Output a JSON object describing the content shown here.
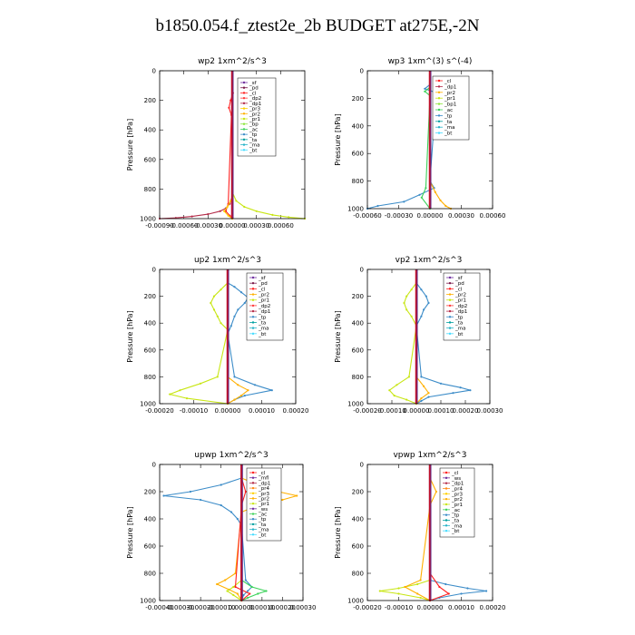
{
  "figure_title": "b1850.054.f_ztest2e_2b  BUDGET at275E,-2N",
  "colors": {
    "sf": "#7030a0",
    "pd": "#7a1a4a",
    "cl": "#ff2020",
    "dp2": "#ff3b3b",
    "dp1": "#b42d4a",
    "pr3": "#ffd000",
    "pr2": "#ffb000",
    "pr1": "#c8e614",
    "bp": "#8ce63c",
    "bp1": "#8ce63c",
    "ac": "#3cd25a",
    "tp": "#3c8cc8",
    "ta": "#00a0a0",
    "ma": "#28b4c8",
    "bt": "#46dcff",
    "mfl": "#7030a0",
    "pr4": "#ff8c1a",
    "ws": "#7030a0",
    "buoy": "#3cd25a"
  },
  "chart_data": [
    {
      "type": "line",
      "title": "wp2   1xm^2/s^3",
      "ylabel": "Pressure [hPa]",
      "ylim": [
        1000,
        0
      ],
      "xlim": [
        -0.0009,
        0.0009
      ],
      "xticks": [
        -0.0009,
        -0.0006,
        -0.0003,
        0.0,
        0.0003,
        0.0006
      ],
      "xtick_labels": [
        "-0.00090",
        "-0.00060",
        "-0.00030",
        "0.00000",
        "0.00030",
        "0.00060"
      ],
      "yticks": [
        0,
        200,
        400,
        600,
        800,
        1000
      ],
      "legend": [
        "_sf",
        "_pd",
        "_cl",
        "_dp2",
        "_dp1",
        "_pr3",
        "_pr2",
        "_pr1",
        "_bp",
        "_ac",
        "_tp",
        "_ta",
        "_ma",
        "_bt"
      ],
      "series": [
        {
          "name": "_dp1",
          "color_key": "dp1",
          "p": [
            850,
            900,
            930,
            950,
            970,
            985,
            995,
            1000
          ],
          "x": [
            0,
            -3e-05,
            -8e-05,
            -0.00015,
            -0.0003,
            -0.0005,
            -0.0007,
            -0.0009
          ]
        },
        {
          "name": "_pr1",
          "color_key": "pr1",
          "p": [
            820,
            880,
            920,
            950,
            975,
            990,
            1000
          ],
          "x": [
            0,
            5e-05,
            0.00015,
            0.0003,
            0.0005,
            0.0007,
            0.0009
          ]
        },
        {
          "name": "_cl",
          "color_key": "cl",
          "p": [
            150,
            200,
            250,
            300,
            900,
            950,
            980,
            1000
          ],
          "x": [
            1e-05,
            -2e-05,
            -4e-05,
            -1e-05,
            -5e-05,
            -8e-05,
            -3e-05,
            0
          ]
        },
        {
          "name": "_pr3",
          "color_key": "pr3",
          "p": [
            880,
            920,
            950,
            980,
            1000
          ],
          "x": [
            -2e-05,
            -6e-05,
            -0.0001,
            -5e-05,
            0
          ]
        },
        {
          "name": "_sf",
          "color_key": "sf",
          "p": [
            0,
            500,
            1000
          ],
          "x": [
            0,
            0,
            0
          ]
        }
      ]
    },
    {
      "type": "line",
      "title": "wp3   1xm^(3) s^(-4)",
      "ylabel": "Pressure [hPa]",
      "ylim": [
        1000,
        0
      ],
      "xlim": [
        -0.0006,
        0.0006
      ],
      "xticks": [
        -0.0006,
        -0.0003,
        0.0,
        0.0003,
        0.0006
      ],
      "xtick_labels": [
        "-0.00060",
        "-0.00030",
        "0.00000",
        "0.00030",
        "0.00060"
      ],
      "yticks": [
        0,
        200,
        400,
        600,
        800,
        1000
      ],
      "legend": [
        "_cl",
        "_dp1",
        "_pr2",
        "_pr1",
        "_bp1",
        "_ac",
        "_tp",
        "_ta",
        "_ma",
        "_bt"
      ],
      "series": [
        {
          "name": "_tp",
          "color_key": "tp",
          "p": [
            100,
            130,
            160,
            800,
            850,
            900,
            950,
            980,
            1000
          ],
          "x": [
            0,
            -5e-05,
            6e-05,
            0,
            4e-05,
            -0.0001,
            -0.00025,
            -0.0005,
            -0.0006
          ]
        },
        {
          "name": "_pr2",
          "color_key": "pr2",
          "p": [
            800,
            880,
            940,
            980,
            1000
          ],
          "x": [
            0,
            5e-05,
            0.0001,
            0.00015,
            0.0002
          ]
        },
        {
          "name": "_ac",
          "color_key": "ac",
          "p": [
            120,
            150,
            180,
            850,
            920,
            1000
          ],
          "x": [
            0,
            -5e-05,
            0,
            -4e-05,
            -8e-05,
            0
          ]
        },
        {
          "name": "_cl",
          "color_key": "cl",
          "p": [
            0,
            500,
            1000
          ],
          "x": [
            0,
            0,
            0
          ]
        }
      ]
    },
    {
      "type": "line",
      "title": "up2   1xm^2/s^3",
      "ylabel": "Pressure [hPa]",
      "ylim": [
        1000,
        0
      ],
      "xlim": [
        -0.0002,
        0.0002
      ],
      "xticks": [
        -0.0002,
        -0.0001,
        0.0,
        0.0001,
        0.0002
      ],
      "xtick_labels": [
        "-0.00020",
        "-0.00010",
        "0.00000",
        "0.00010",
        "0.00020"
      ],
      "yticks": [
        0,
        200,
        400,
        600,
        800,
        1000
      ],
      "legend": [
        "_sf",
        "_pd",
        "_cl",
        "_pr2",
        "_pr1",
        "_dp2",
        "_dp1",
        "_tp",
        "_ta",
        "_ma",
        "_bt"
      ],
      "series": [
        {
          "name": "_pr1",
          "color_key": "pr1",
          "p": [
            100,
            150,
            200,
            250,
            300,
            350,
            400,
            450,
            800,
            850,
            900,
            930,
            960,
            1000
          ],
          "x": [
            0,
            -2e-05,
            -4e-05,
            -5e-05,
            -4e-05,
            -3e-05,
            -2e-05,
            0,
            -3e-05,
            -8e-05,
            -0.00014,
            -0.00017,
            -0.00012,
            0
          ]
        },
        {
          "name": "_tp",
          "color_key": "tp",
          "p": [
            100,
            130,
            170,
            210,
            250,
            300,
            350,
            420,
            480,
            800,
            860,
            900,
            940,
            970,
            1000
          ],
          "x": [
            0,
            2e-05,
            4e-05,
            6e-05,
            5e-05,
            3e-05,
            2e-05,
            1e-05,
            0,
            2e-05,
            8e-05,
            0.00013,
            5e-05,
            2e-05,
            0
          ]
        },
        {
          "name": "_pr2",
          "color_key": "pr2",
          "p": [
            800,
            860,
            900,
            940,
            970,
            1000
          ],
          "x": [
            0,
            3e-05,
            6e-05,
            4e-05,
            2e-05,
            0
          ]
        },
        {
          "name": "_cl",
          "color_key": "cl",
          "p": [
            0,
            500,
            1000
          ],
          "x": [
            0,
            0,
            0
          ]
        }
      ]
    },
    {
      "type": "line",
      "title": "vp2   1xm^2/s^3",
      "ylabel": "Pressure [hPa]",
      "ylim": [
        1000,
        0
      ],
      "xlim": [
        -0.0002,
        0.0003
      ],
      "xticks": [
        -0.0002,
        -0.0001,
        0.0,
        0.0001,
        0.0002,
        0.0003
      ],
      "xtick_labels": [
        "-0.00020",
        "-0.00010",
        "0.00000",
        "0.00010",
        "0.00020",
        "0.00030"
      ],
      "yticks": [
        0,
        200,
        400,
        600,
        800,
        1000
      ],
      "legend": [
        "_sf",
        "_pd",
        "_cl",
        "_pr2",
        "_pr1",
        "_dp2",
        "_dp1",
        "_tp",
        "_ta",
        "_ma",
        "_bt"
      ],
      "series": [
        {
          "name": "_pr1",
          "color_key": "pr1",
          "p": [
            100,
            150,
            200,
            250,
            300,
            350,
            420,
            800,
            860,
            900,
            940,
            970,
            1000
          ],
          "x": [
            0,
            -2e-05,
            -4e-05,
            -5e-05,
            -4e-05,
            -2e-05,
            0,
            -3e-05,
            -8e-05,
            -0.00011,
            -9e-05,
            -4e-05,
            0
          ]
        },
        {
          "name": "_tp",
          "color_key": "tp",
          "p": [
            100,
            150,
            200,
            250,
            300,
            350,
            420,
            800,
            850,
            880,
            900,
            920,
            950,
            980,
            1000
          ],
          "x": [
            0,
            2e-05,
            4e-05,
            5e-05,
            3e-05,
            2e-05,
            0,
            2e-05,
            0.0001,
            0.00018,
            0.00022,
            0.00015,
            5e-05,
            2e-05,
            0
          ]
        },
        {
          "name": "_pr2",
          "color_key": "pr2",
          "p": [
            800,
            870,
            920,
            960,
            1000
          ],
          "x": [
            0,
            3e-05,
            5e-05,
            2e-05,
            0
          ]
        },
        {
          "name": "_cl",
          "color_key": "cl",
          "p": [
            0,
            500,
            1000
          ],
          "x": [
            0,
            0,
            0
          ]
        }
      ]
    },
    {
      "type": "line",
      "title": "upwp   1xm^2/s^3",
      "ylabel": "Pressure [hPa]",
      "ylim": [
        1000,
        0
      ],
      "xlim": [
        -0.0004,
        0.0003
      ],
      "xticks": [
        -0.0004,
        -0.0003,
        -0.0002,
        -0.0001,
        0.0,
        0.0001,
        0.0002,
        0.0003
      ],
      "xtick_labels": [
        "-0.00040",
        "-0.00030",
        "-0.00020",
        "-0.00010",
        "0.00000",
        "0.00010",
        "0.00020",
        "0.00030"
      ],
      "yticks": [
        0,
        200,
        400,
        600,
        800,
        1000
      ],
      "legend": [
        "_cl",
        "_mfl",
        "_dp1",
        "_pr4",
        "_pr3",
        "_pr2",
        "_pr1",
        "_ws",
        "_ac",
        "_tp",
        "_ta",
        "_ma",
        "_bt"
      ],
      "series": [
        {
          "name": "_tp",
          "color_key": "tp",
          "p": [
            100,
            150,
            200,
            230,
            260,
            300,
            350,
            400,
            450,
            850,
            900,
            930,
            960,
            1000
          ],
          "x": [
            0,
            -0.0001,
            -0.00025,
            -0.00038,
            -0.0002,
            -0.0001,
            -5e-05,
            -2e-05,
            0,
            2e-05,
            5e-05,
            3e-05,
            1e-05,
            0
          ]
        },
        {
          "name": "_pr2",
          "color_key": "pr2",
          "p": [
            100,
            150,
            200,
            230,
            260,
            300,
            350,
            800,
            850,
            880,
            920,
            950,
            1000
          ],
          "x": [
            0,
            8e-05,
            0.00018,
            0.00027,
            0.0002,
            8e-05,
            0,
            -3e-05,
            -8e-05,
            -0.00012,
            -6e-05,
            -2e-05,
            0
          ]
        },
        {
          "name": "_ac",
          "color_key": "ac",
          "p": [
            850,
            900,
            930,
            950,
            980,
            1000
          ],
          "x": [
            0,
            5e-05,
            0.00012,
            8e-05,
            3e-05,
            0
          ]
        },
        {
          "name": "_pr1",
          "color_key": "pr1",
          "p": [
            850,
            900,
            930,
            960,
            1000
          ],
          "x": [
            0,
            -4e-05,
            -7e-05,
            -4e-05,
            0
          ]
        },
        {
          "name": "_cl",
          "color_key": "cl",
          "p": [
            100,
            200,
            300,
            900,
            950,
            1000
          ],
          "x": [
            0,
            2e-05,
            0,
            -3e-05,
            4e-05,
            0
          ]
        },
        {
          "name": "_mfl",
          "color_key": "mfl",
          "p": [
            0,
            500,
            1000
          ],
          "x": [
            0,
            0,
            0
          ]
        }
      ]
    },
    {
      "type": "line",
      "title": "vpwp   1xm^2/s^3",
      "ylabel": "Pressure [hPa]",
      "ylim": [
        1000,
        0
      ],
      "xlim": [
        -0.0002,
        0.0002
      ],
      "xticks": [
        -0.0002,
        -0.0001,
        0.0,
        0.0001,
        0.0002
      ],
      "xtick_labels": [
        "-0.00020",
        "-0.00010",
        "0.00000",
        "0.00010",
        "0.00020"
      ],
      "yticks": [
        0,
        200,
        400,
        600,
        800,
        1000
      ],
      "legend": [
        "_cl",
        "_ws",
        "_dp1",
        "_pr4",
        "_pr3",
        "_pr2",
        "_pr1",
        "_ac",
        "_tp",
        "_ta",
        "_ma",
        "_bt"
      ],
      "series": [
        {
          "name": "_pr1",
          "color_key": "pr1",
          "p": [
            850,
            880,
            910,
            930,
            950,
            980,
            1000
          ],
          "x": [
            0,
            -4e-05,
            -0.0001,
            -0.00016,
            -0.0001,
            -3e-05,
            0
          ]
        },
        {
          "name": "_tp",
          "color_key": "tp",
          "p": [
            850,
            880,
            910,
            930,
            950,
            980,
            1000
          ],
          "x": [
            0,
            5e-05,
            0.00012,
            0.00018,
            0.0001,
            3e-05,
            0
          ]
        },
        {
          "name": "_pr2",
          "color_key": "pr2",
          "p": [
            100,
            200,
            300,
            850,
            900,
            950,
            1000
          ],
          "x": [
            0,
            2e-05,
            0,
            -3e-05,
            -8e-05,
            -4e-05,
            0
          ]
        },
        {
          "name": "_cl",
          "color_key": "cl",
          "p": [
            800,
            900,
            950,
            1000
          ],
          "x": [
            0,
            3e-05,
            6e-05,
            0
          ]
        },
        {
          "name": "_ws",
          "color_key": "ws",
          "p": [
            0,
            500,
            1000
          ],
          "x": [
            0,
            0,
            0
          ]
        }
      ]
    }
  ]
}
